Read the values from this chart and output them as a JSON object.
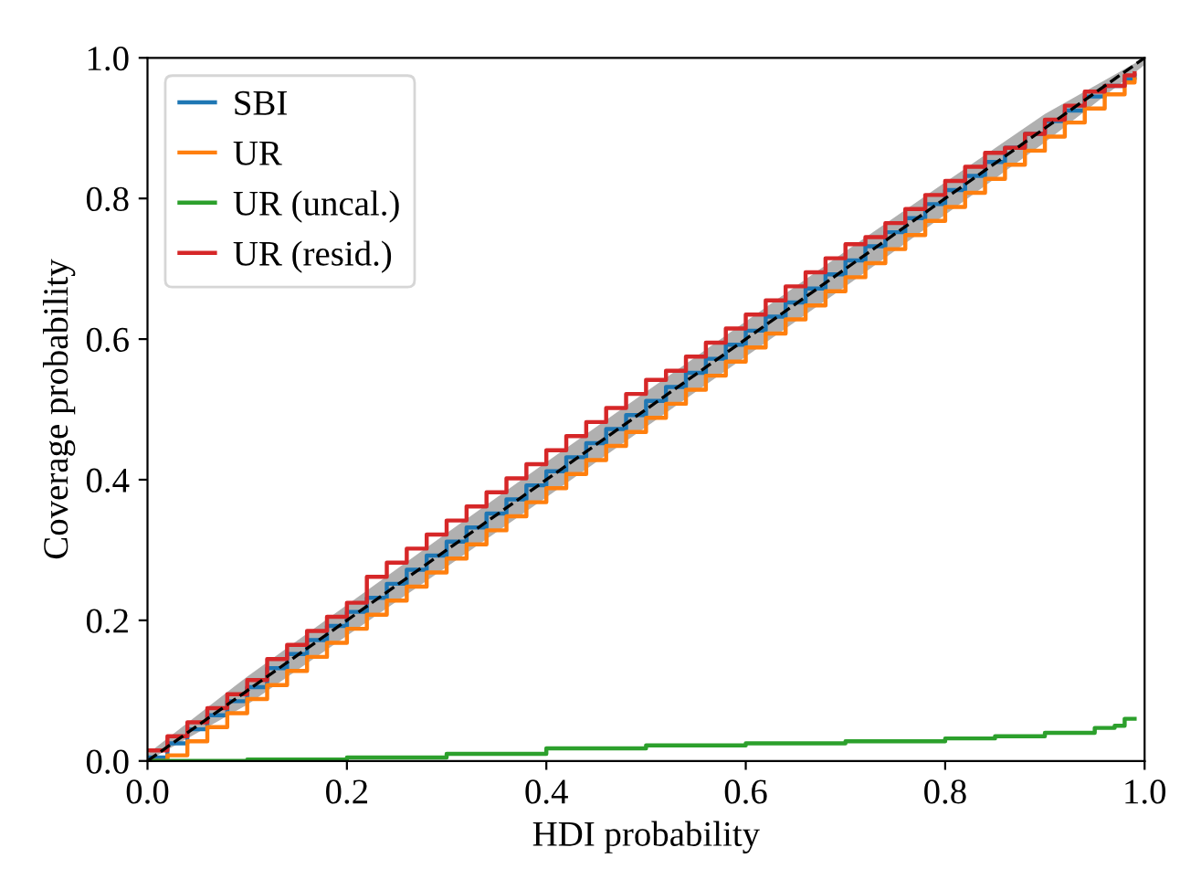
{
  "chart_data": {
    "type": "step",
    "xlabel": "HDI probability",
    "ylabel": "Coverage probability",
    "xlim": [
      0,
      1
    ],
    "ylim": [
      0,
      1
    ],
    "xticks": [
      {
        "value": 0,
        "label": "0.0"
      },
      0.2,
      0.4,
      0.6,
      0.8,
      {
        "value": 1,
        "label": "1.0"
      }
    ],
    "yticks": [
      {
        "value": 0,
        "label": "0.0"
      },
      0.2,
      0.4,
      0.6,
      0.8,
      {
        "value": 1,
        "label": "1.0"
      }
    ],
    "grid": false,
    "legend": "top left",
    "marker": "none",
    "series": [
      {
        "type": "line",
        "line_style": "dashed",
        "color": "#000000",
        "x": [
          0,
          0.1,
          0.2,
          0.3,
          0.4,
          0.5,
          0.6,
          0.7,
          0.8,
          0.9,
          1.0
        ],
        "values": [
          0,
          0.1,
          0.2,
          0.3,
          0.4,
          0.5,
          0.6,
          0.7,
          0.8,
          0.9,
          1.0
        ],
        "lower": [
          0,
          0.08,
          0.178,
          0.276,
          0.375,
          0.475,
          0.575,
          0.675,
          0.777,
          0.88,
          0.99
        ],
        "upper": [
          0.01,
          0.12,
          0.222,
          0.324,
          0.425,
          0.525,
          0.625,
          0.725,
          0.823,
          0.92,
          1.0
        ]
      },
      {
        "name": "SBI",
        "color": "#1f77b4",
        "x": [
          0,
          0.02,
          0.04,
          0.06,
          0.08,
          0.1,
          0.12,
          0.14,
          0.16,
          0.18,
          0.2,
          0.22,
          0.24,
          0.26,
          0.28,
          0.3,
          0.32,
          0.34,
          0.36,
          0.38,
          0.4,
          0.42,
          0.44,
          0.46,
          0.48,
          0.5,
          0.52,
          0.54,
          0.56,
          0.58,
          0.6,
          0.62,
          0.64,
          0.66,
          0.68,
          0.7,
          0.72,
          0.74,
          0.76,
          0.78,
          0.8,
          0.82,
          0.84,
          0.86,
          0.88,
          0.9,
          0.92,
          0.94,
          0.96,
          0.98,
          0.99
        ],
        "values": [
          0.005,
          0.025,
          0.045,
          0.065,
          0.085,
          0.105,
          0.132,
          0.152,
          0.172,
          0.192,
          0.212,
          0.232,
          0.252,
          0.272,
          0.292,
          0.312,
          0.332,
          0.352,
          0.372,
          0.392,
          0.412,
          0.432,
          0.452,
          0.472,
          0.492,
          0.512,
          0.532,
          0.552,
          0.572,
          0.592,
          0.612,
          0.632,
          0.652,
          0.672,
          0.692,
          0.712,
          0.732,
          0.752,
          0.772,
          0.792,
          0.812,
          0.832,
          0.852,
          0.872,
          0.892,
          0.91,
          0.925,
          0.945,
          0.96,
          0.97,
          0.975
        ]
      },
      {
        "name": "UR",
        "color": "#ff7f0e",
        "x": [
          0,
          0.02,
          0.04,
          0.06,
          0.08,
          0.1,
          0.12,
          0.14,
          0.16,
          0.18,
          0.2,
          0.22,
          0.24,
          0.26,
          0.28,
          0.3,
          0.32,
          0.34,
          0.36,
          0.38,
          0.4,
          0.42,
          0.44,
          0.46,
          0.48,
          0.5,
          0.52,
          0.54,
          0.56,
          0.58,
          0.6,
          0.62,
          0.64,
          0.66,
          0.68,
          0.7,
          0.72,
          0.74,
          0.76,
          0.78,
          0.8,
          0.82,
          0.84,
          0.86,
          0.88,
          0.9,
          0.92,
          0.94,
          0.96,
          0.98,
          0.99
        ],
        "values": [
          0.0,
          0.008,
          0.028,
          0.048,
          0.068,
          0.088,
          0.108,
          0.128,
          0.148,
          0.168,
          0.188,
          0.208,
          0.228,
          0.248,
          0.268,
          0.288,
          0.308,
          0.328,
          0.348,
          0.368,
          0.388,
          0.408,
          0.428,
          0.448,
          0.468,
          0.488,
          0.508,
          0.528,
          0.548,
          0.568,
          0.588,
          0.608,
          0.628,
          0.648,
          0.668,
          0.688,
          0.708,
          0.728,
          0.748,
          0.768,
          0.788,
          0.808,
          0.828,
          0.848,
          0.868,
          0.888,
          0.908,
          0.928,
          0.948,
          0.965,
          0.97
        ]
      },
      {
        "name": "UR (uncal.)",
        "color": "#2ca02c",
        "x": [
          0,
          0.1,
          0.2,
          0.3,
          0.4,
          0.5,
          0.6,
          0.7,
          0.8,
          0.85,
          0.9,
          0.95,
          0.97,
          0.98,
          0.99
        ],
        "values": [
          0,
          0.002,
          0.005,
          0.01,
          0.018,
          0.022,
          0.025,
          0.028,
          0.032,
          0.035,
          0.04,
          0.047,
          0.05,
          0.06,
          0.06
        ]
      },
      {
        "name": "UR (resid.)",
        "color": "#d62728",
        "x": [
          0,
          0.02,
          0.04,
          0.06,
          0.08,
          0.1,
          0.12,
          0.14,
          0.16,
          0.18,
          0.2,
          0.22,
          0.24,
          0.26,
          0.28,
          0.3,
          0.32,
          0.34,
          0.36,
          0.38,
          0.4,
          0.42,
          0.44,
          0.46,
          0.48,
          0.5,
          0.52,
          0.54,
          0.56,
          0.58,
          0.6,
          0.62,
          0.64,
          0.66,
          0.68,
          0.7,
          0.72,
          0.74,
          0.76,
          0.78,
          0.8,
          0.82,
          0.84,
          0.86,
          0.88,
          0.9,
          0.92,
          0.94,
          0.96,
          0.98,
          0.99
        ],
        "values": [
          0.015,
          0.035,
          0.055,
          0.075,
          0.095,
          0.115,
          0.145,
          0.165,
          0.185,
          0.205,
          0.225,
          0.262,
          0.282,
          0.302,
          0.322,
          0.342,
          0.362,
          0.382,
          0.402,
          0.422,
          0.442,
          0.462,
          0.482,
          0.502,
          0.522,
          0.542,
          0.555,
          0.575,
          0.595,
          0.615,
          0.635,
          0.655,
          0.675,
          0.695,
          0.715,
          0.735,
          0.745,
          0.765,
          0.785,
          0.805,
          0.825,
          0.845,
          0.865,
          0.872,
          0.892,
          0.912,
          0.932,
          0.952,
          0.96,
          0.975,
          0.978
        ]
      }
    ]
  }
}
